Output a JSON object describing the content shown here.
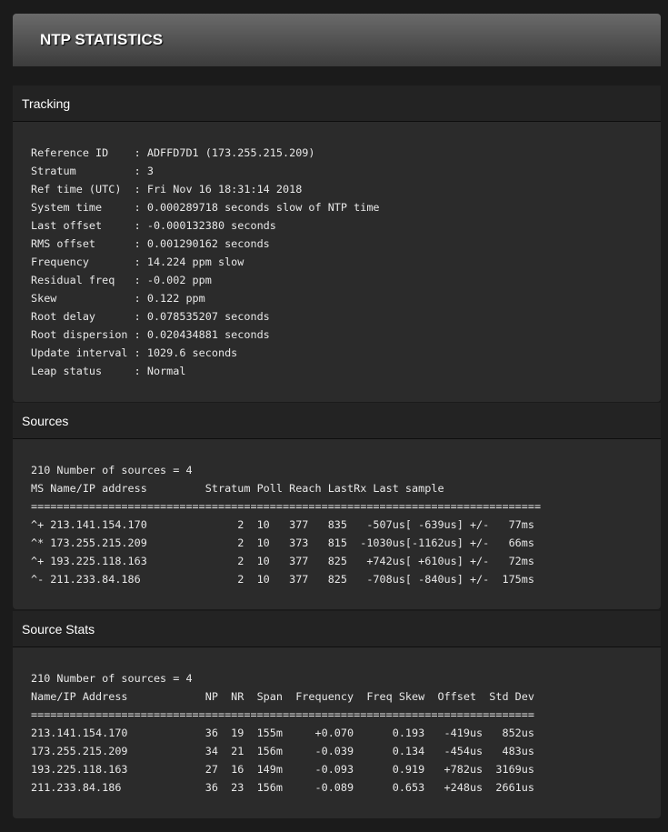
{
  "title": "NTP STATISTICS",
  "tracking": {
    "label": "Tracking",
    "lines": [
      "Reference ID    : ADFFD7D1 (173.255.215.209)",
      "Stratum         : 3",
      "Ref time (UTC)  : Fri Nov 16 18:31:14 2018",
      "System time     : 0.000289718 seconds slow of NTP time",
      "Last offset     : -0.000132380 seconds",
      "RMS offset      : 0.001290162 seconds",
      "Frequency       : 14.224 ppm slow",
      "Residual freq   : -0.002 ppm",
      "Skew            : 0.122 ppm",
      "Root delay      : 0.078535207 seconds",
      "Root dispersion : 0.020434881 seconds",
      "Update interval : 1029.6 seconds",
      "Leap status     : Normal"
    ]
  },
  "sources": {
    "label": "Sources",
    "lines": [
      "210 Number of sources = 4",
      "MS Name/IP address         Stratum Poll Reach LastRx Last sample",
      "===============================================================================",
      "^+ 213.141.154.170              2  10   377   835   -507us[ -639us] +/-   77ms",
      "^* 173.255.215.209              2  10   373   815  -1030us[-1162us] +/-   66ms",
      "^+ 193.225.118.163              2  10   377   825   +742us[ +610us] +/-   72ms",
      "^- 211.233.84.186               2  10   377   825   -708us[ -840us] +/-  175ms"
    ]
  },
  "source_stats": {
    "label": "Source Stats",
    "lines": [
      "210 Number of sources = 4",
      "Name/IP Address            NP  NR  Span  Frequency  Freq Skew  Offset  Std Dev",
      "==============================================================================",
      "213.141.154.170            36  19  155m     +0.070      0.193   -419us   852us",
      "173.255.215.209            34  21  156m     -0.039      0.134   -454us   483us",
      "193.225.118.163            27  16  149m     -0.093      0.919   +782us  3169us",
      "211.233.84.186             36  23  156m     -0.089      0.653   +248us  2661us"
    ]
  }
}
